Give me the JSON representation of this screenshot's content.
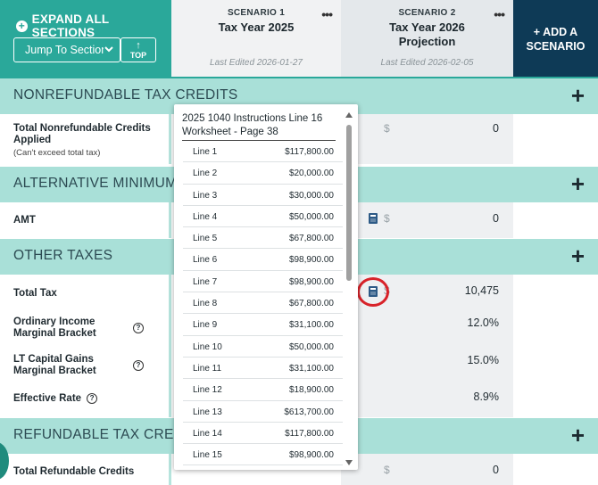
{
  "header": {
    "expand_label": "EXPAND ALL SECTIONS",
    "jump_label": "Jump To Section",
    "top_label": "TOP",
    "add_scenario_line1": "+ ADD A",
    "add_scenario_line2": "SCENARIO"
  },
  "scenarios": [
    {
      "label": "SCENARIO 1",
      "title_line1": "Tax Year 2025",
      "title_line2": "",
      "edited": "Last Edited 2026-01-27"
    },
    {
      "label": "SCENARIO 2",
      "title_line1": "Tax Year 2026",
      "title_line2": "Projection",
      "edited": "Last Edited 2026-02-05"
    }
  ],
  "sections": {
    "nonrefundable": "NONREFUNDABLE TAX CREDITS",
    "amt": "ALTERNATIVE MINIMUM TAX (A",
    "other": "OTHER TAXES",
    "refundable": "REFUNDABLE TAX CREDITS"
  },
  "rows": {
    "nonrefundable_label": "Total Nonrefundable Credits Applied",
    "nonrefundable_sub": "(Can't exceed total tax)",
    "nonrefundable_val": "0",
    "amt_label": "AMT",
    "amt_val": "0",
    "total_tax_label": "Total Tax",
    "total_tax_val": "10,475",
    "ordinary_label": "Ordinary Income Marginal Bracket",
    "ordinary_val": "12.0%",
    "ltcg_label": "LT Capital Gains Marginal Bracket",
    "ltcg_val": "15.0%",
    "effective_label": "Effective Rate",
    "effective_val": "8.9%",
    "refundable_label": "Total Refundable Credits",
    "refundable_val": "0",
    "currency": "$"
  },
  "popup": {
    "title": "2025 1040 Instructions Line 16 Worksheet - Page 38",
    "lines": [
      {
        "name": "Line 1",
        "value": "$117,800.00"
      },
      {
        "name": "Line 2",
        "value": "$20,000.00"
      },
      {
        "name": "Line 3",
        "value": "$30,000.00"
      },
      {
        "name": "Line 4",
        "value": "$50,000.00"
      },
      {
        "name": "Line 5",
        "value": "$67,800.00"
      },
      {
        "name": "Line 6",
        "value": "$98,900.00"
      },
      {
        "name": "Line 7",
        "value": "$98,900.00"
      },
      {
        "name": "Line 8",
        "value": "$67,800.00"
      },
      {
        "name": "Line 9",
        "value": "$31,100.00"
      },
      {
        "name": "Line 10",
        "value": "$50,000.00"
      },
      {
        "name": "Line 11",
        "value": "$31,100.00"
      },
      {
        "name": "Line 12",
        "value": "$18,900.00"
      },
      {
        "name": "Line 13",
        "value": "$613,700.00"
      },
      {
        "name": "Line 14",
        "value": "$117,800.00"
      },
      {
        "name": "Line 15",
        "value": "$98,900.00"
      }
    ]
  },
  "icons": {
    "expand": "plus-circle-icon",
    "jump": "chevron-down-icon",
    "top": "arrow-up-icon",
    "menu": "more-dots-icon",
    "section_toggle": "plus-icon",
    "calculator": "calculator-icon",
    "help": "question-circle-icon"
  },
  "colors": {
    "teal": "#2aa89a",
    "section_bar": "#a9e0d8",
    "navy": "#0e3a56",
    "highlight_ring": "#d8232a"
  }
}
